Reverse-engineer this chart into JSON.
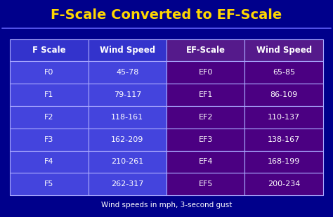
{
  "title": "F-Scale Converted to EF-Scale",
  "title_color": "#FFD700",
  "bg_color": "#00008B",
  "table_headers": [
    "F Scale",
    "Wind Speed",
    "EF-Scale",
    "Wind Speed"
  ],
  "f_scale": [
    "F0",
    "F1",
    "F2",
    "F3",
    "F4",
    "F5"
  ],
  "f_wind": [
    "45-78",
    "79-117",
    "118-161",
    "162-209",
    "210-261",
    "262-317"
  ],
  "ef_scale": [
    "EF0",
    "EF1",
    "EF2",
    "EF3",
    "EF4",
    "EF5"
  ],
  "ef_wind": [
    "65-85",
    "86-109",
    "110-137",
    "138-167",
    "168-199",
    "200-234"
  ],
  "footer": "Wind speeds in mph, 3-second gust",
  "footer_color": "#FFFFFF",
  "header_bg_left": "#3333CC",
  "header_bg_right": "#551A8B",
  "row_bg_left": "#4444DD",
  "row_bg_right": "#4B0082",
  "cell_text_color": "#FFFFFF",
  "table_border_color": "#AAAAFF",
  "header_text_color": "#FFFFFF",
  "line_color": "#6666FF"
}
